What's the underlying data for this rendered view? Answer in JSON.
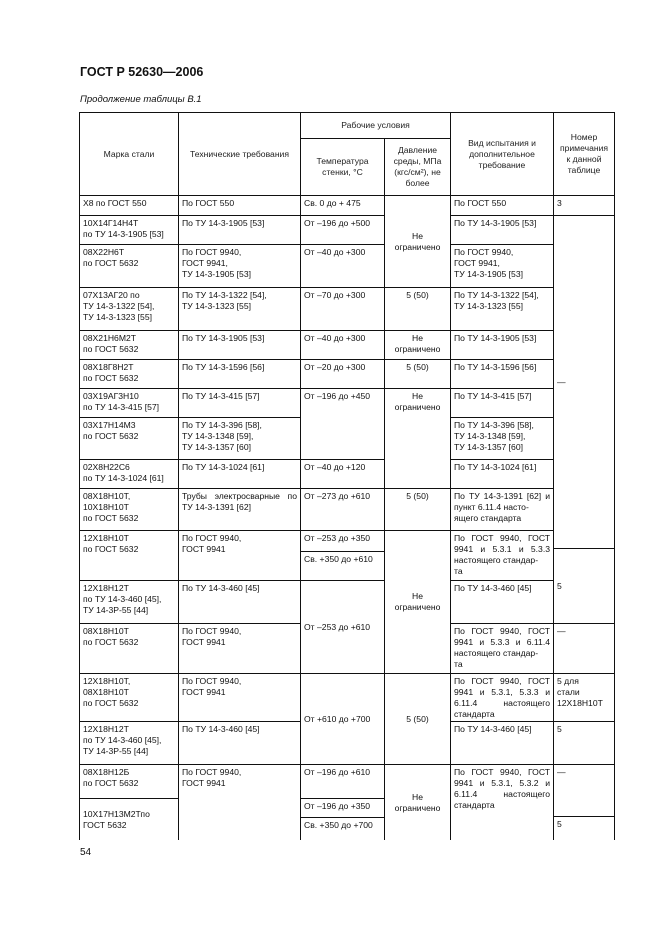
{
  "header": {
    "title": "ГОСТ Р 52630—2006",
    "subtitle": "Продолжение таблицы В.1"
  },
  "table": {
    "columns": {
      "mark": "Марка стали",
      "requirements": "Технические требования",
      "conditions": "Рабочие условия",
      "temperature": "Температура стенки, °С",
      "pressure": "Давление среды, МПа (кгс/см²), не более",
      "test": "Вид испытания и дополнительное требование",
      "note": "Номер примечания к данной таблице"
    },
    "body": [
      "Х8 по ГОСТ 550",
      "По ГОСТ 550",
      "Св. 0 до + 475",
      "Не\nограничено",
      "По ГОСТ 550",
      "3",
      "10Х14Г14Н4Т\nпо ТУ 14-3-1905 [53]",
      "По ТУ 14-3-1905 [53]",
      "От –196 до +500",
      "По ТУ 14-3-1905 [53]",
      "—",
      "08Х22Н6Т\nпо ГОСТ 5632",
      "По ГОСТ 9940,\nГОСТ 9941,\nТУ 14-3-1905 [53]",
      "От –40 до +300",
      "По ГОСТ 9940,\nГОСТ 9941,\nТУ 14-3-1905 [53]",
      "07Х13АГ20 по\nТУ 14-3-1322 [54],\nТУ 14-3-1323 [55]",
      "По ТУ 14-3-1322 [54],\nТУ 14-3-1323 [55]",
      "От –70 до +300",
      "5 (50)",
      "По ТУ 14-3-1322 [54],\nТУ 14-3-1323 [55]",
      "08Х21Н6М2Т\nпо ГОСТ 5632",
      "По ТУ 14-3-1905 [53]",
      "От –40 до +300",
      "Не\nограничено",
      "По ТУ 14-3-1905 [53]",
      "08Х18Г8Н2Т\nпо ГОСТ 5632",
      "По ТУ 14-3-1596 [56]",
      "От –20 до +300",
      "5 (50)",
      "По ТУ 14-3-1596 [56]",
      "03Х19АГ3Н10\nпо ТУ 14-3-415 [57]",
      "По ТУ 14-3-415 [57]",
      "От –196 до +450",
      "Не\nограничено",
      "По ТУ 14-3-415 [57]",
      "03Х17Н14М3\nпо ГОСТ 5632",
      "По ТУ 14-3-396 [58],\nТУ 14-3-1348 [59],\nТУ 14-3-1357 [60]",
      "По ТУ 14-3-396 [58],\nТУ 14-3-1348 [59],\nТУ 14-3-1357 [60]",
      "02Х8Н22С6\nпо ТУ 14-3-1024 [61]",
      "По ТУ 14-3-1024 [61]",
      "От –40 до +120",
      "По ТУ 14-3-1024 [61]",
      "08Х18Н10Т,\n10Х18Н10Т\nпо ГОСТ 5632",
      "Трубы электросварные по ТУ 14-3-1391 [62]",
      "От –273 до +610",
      "5 (50)",
      "По ТУ 14-3-1391 [62] и пункт 6.11.4 насто-\nящего стандарта",
      "12Х18Н10Т\nпо ГОСТ 5632",
      "По ГОСТ 9940,\nГОСТ 9941",
      "От –253 до +350",
      "Св. +350 до +610",
      "Не\nограничено",
      "По ГОСТ 9940, ГОСТ 9941 и 5.3.1 и 5.3.3 настоящего стандар-\nта",
      "5",
      "12Х18Н12Т\nпо ТУ 14-3-460 [45],\nТУ 14-3Р-55 [44]",
      "По ТУ 14-3-460 [45]",
      "От –253 до +610",
      "По ТУ 14-3-460 [45]",
      "08Х18Н10Т\nпо ГОСТ 5632",
      "По ГОСТ 9940,\nГОСТ 9941",
      "По ГОСТ 9940, ГОСТ 9941 и 5.3.3 и 6.11.4 настоящего стандар-\nта",
      "—",
      "12Х18Н10Т,\n08Х18Н10Т\nпо ГОСТ 5632",
      "По ГОСТ 9940,\nГОСТ 9941",
      "От +610 до +700",
      "5 (50)",
      "По ГОСТ 9940, ГОСТ 9941 и 5.3.1, 5.3.3 и 6.11.4 настоящего стандарта",
      "5 для\nстали\n12Х18Н10Т",
      "12Х18Н12Т\nпо ТУ 14-3-460 [45],\nТУ 14-3Р-55 [44]",
      "По ТУ 14-3-460 [45]",
      "По ТУ 14-3-460 [45]",
      "5",
      "08Х18Н12Б\nпо ГОСТ 5632",
      "По ГОСТ 9940,\nГОСТ 9941",
      "От –196 до +610",
      "Не\nограничено",
      "По ГОСТ 9940, ГОСТ 9941 и 5.3.1, 5.3.2 и 6.11.4 настоящего стандарта",
      "—",
      "10Х17Н13М2Тпо\nГОСТ 5632",
      "От –196 до +350",
      "Св. +350 до +700",
      "5"
    ]
  },
  "footer": {
    "page_number": "54"
  }
}
